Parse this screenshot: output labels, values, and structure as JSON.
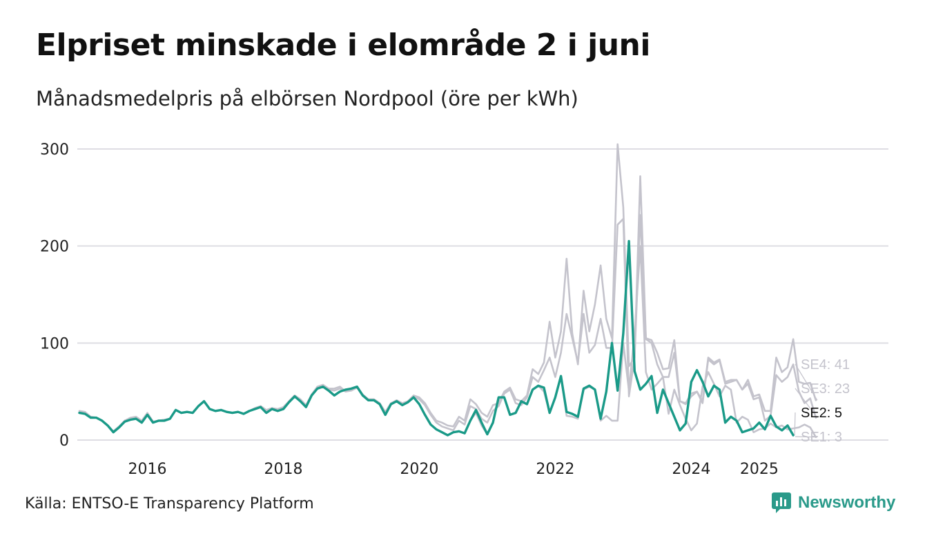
{
  "header": {
    "title": "Elpriset minskade i elområde 2 i juni",
    "subtitle": "Månadsmedelpris på elbörsen Nordpool (öre per kWh)"
  },
  "footer": {
    "source": "Källa: ENTSO-E Transparency Platform",
    "logo_text": "Newsworthy"
  },
  "colors": {
    "highlight": "#1a9a88",
    "muted": "#c4c3cc",
    "grid": "#dedde3",
    "logo": "#2a9a8a"
  },
  "chart_data": {
    "type": "line",
    "title": "Elpriset minskade i elområde 2 i juni",
    "ylabel": "",
    "xlabel": "",
    "ylim": [
      0,
      300
    ],
    "yticks": [
      0,
      100,
      200,
      300
    ],
    "xlim": [
      2015.0,
      2026.9
    ],
    "xticks": [
      {
        "value": 2016.0,
        "label": "2016"
      },
      {
        "value": 2018.0,
        "label": "2018"
      },
      {
        "value": 2020.0,
        "label": "2020"
      },
      {
        "value": 2022.0,
        "label": "2022"
      },
      {
        "value": 2024.0,
        "label": "2024"
      },
      {
        "value": 2025.0,
        "label": "2025"
      }
    ],
    "grid": true,
    "legend": "end-labels",
    "series": [
      {
        "name": "SE4",
        "end_label": "SE4: 41",
        "highlight": false,
        "values": [
          30,
          29,
          24,
          23,
          20,
          15,
          9,
          14,
          20,
          23,
          24,
          20,
          28,
          19,
          20,
          21,
          22,
          31,
          28,
          29,
          28,
          35,
          40,
          32,
          30,
          31,
          29,
          28,
          29,
          27,
          30,
          33,
          35,
          31,
          33,
          32,
          34,
          40,
          46,
          42,
          36,
          47,
          55,
          57,
          53,
          53,
          55,
          50,
          52,
          55,
          47,
          42,
          42,
          38,
          29,
          38,
          41,
          38,
          40,
          46,
          44,
          38,
          28,
          20,
          18,
          15,
          14,
          24,
          20,
          42,
          37,
          28,
          24,
          36,
          38,
          50,
          54,
          42,
          40,
          46,
          73,
          68,
          80,
          122,
          85,
          112,
          187,
          110,
          78,
          154,
          112,
          140,
          180,
          125,
          105,
          305,
          240,
          76,
          85,
          272,
          105,
          103,
          90,
          73,
          74,
          103,
          40,
          38,
          48,
          50,
          40,
          85,
          80,
          83,
          60,
          62,
          62,
          52,
          62,
          45,
          47,
          30,
          30,
          85,
          70,
          75,
          104,
          60,
          58,
          59,
          41
        ]
      },
      {
        "name": "SE3",
        "end_label": "SE3: 23",
        "highlight": false,
        "values": [
          29,
          28,
          24,
          23,
          20,
          15,
          9,
          14,
          20,
          22,
          23,
          19,
          27,
          19,
          20,
          21,
          22,
          31,
          28,
          29,
          28,
          35,
          40,
          32,
          30,
          31,
          29,
          28,
          29,
          27,
          30,
          33,
          35,
          30,
          33,
          31,
          33,
          40,
          46,
          42,
          35,
          47,
          54,
          56,
          52,
          51,
          53,
          50,
          51,
          54,
          46,
          42,
          42,
          38,
          28,
          38,
          40,
          37,
          40,
          45,
          42,
          36,
          26,
          18,
          14,
          12,
          10,
          20,
          16,
          35,
          32,
          22,
          18,
          30,
          35,
          48,
          52,
          38,
          36,
          44,
          65,
          60,
          72,
          85,
          65,
          90,
          130,
          105,
          80,
          130,
          90,
          98,
          125,
          95,
          95,
          222,
          228,
          45,
          85,
          232,
          104,
          100,
          78,
          65,
          65,
          90,
          40,
          37,
          45,
          50,
          38,
          83,
          78,
          82,
          58,
          60,
          62,
          52,
          58,
          42,
          44,
          20,
          25,
          67,
          60,
          65,
          78,
          50,
          38,
          43,
          23
        ]
      },
      {
        "name": "SE1",
        "end_label": "SE1: 3",
        "highlight": false,
        "values": [
          28,
          27,
          23,
          23,
          20,
          15,
          8,
          13,
          19,
          21,
          22,
          18,
          26,
          18,
          20,
          20,
          22,
          31,
          28,
          29,
          28,
          35,
          40,
          32,
          30,
          31,
          29,
          28,
          29,
          27,
          30,
          32,
          34,
          28,
          32,
          30,
          32,
          39,
          45,
          40,
          34,
          46,
          53,
          55,
          51,
          46,
          50,
          52,
          53,
          55,
          46,
          41,
          41,
          37,
          26,
          37,
          40,
          36,
          39,
          44,
          37,
          26,
          16,
          11,
          8,
          5,
          8,
          9,
          7,
          20,
          28,
          15,
          6,
          18,
          44,
          44,
          26,
          28,
          40,
          37,
          52,
          56,
          50,
          28,
          44,
          66,
          25,
          24,
          22,
          52,
          55,
          52,
          20,
          25,
          20,
          20,
          100,
          51,
          110,
          200,
          70,
          52,
          58,
          65,
          27,
          52,
          36,
          22,
          10,
          17,
          55,
          70,
          58,
          45,
          56,
          52,
          18,
          24,
          21,
          8,
          11,
          12,
          17,
          13,
          15,
          11,
          12,
          13,
          16,
          13,
          3
        ]
      },
      {
        "name": "SE2",
        "end_label": "SE2: 5",
        "highlight": true,
        "values": [
          28,
          27,
          23,
          23,
          20,
          15,
          8,
          13,
          19,
          21,
          22,
          18,
          26,
          18,
          20,
          20,
          22,
          31,
          28,
          29,
          28,
          35,
          40,
          32,
          30,
          31,
          29,
          28,
          29,
          27,
          30,
          32,
          34,
          28,
          32,
          30,
          32,
          39,
          45,
          40,
          34,
          46,
          53,
          55,
          51,
          46,
          50,
          52,
          53,
          55,
          46,
          41,
          41,
          37,
          26,
          37,
          40,
          36,
          39,
          44,
          37,
          26,
          16,
          11,
          8,
          5,
          8,
          9,
          7,
          20,
          31,
          18,
          6,
          18,
          44,
          44,
          26,
          28,
          40,
          37,
          52,
          56,
          54,
          28,
          44,
          66,
          29,
          27,
          24,
          53,
          56,
          52,
          22,
          50,
          100,
          51,
          110,
          205,
          71,
          52,
          58,
          66,
          28,
          52,
          38,
          24,
          10,
          17,
          60,
          72,
          60,
          45,
          56,
          52,
          18,
          24,
          20,
          8,
          10,
          12,
          18,
          11,
          25,
          14,
          10,
          15,
          5
        ]
      }
    ]
  }
}
